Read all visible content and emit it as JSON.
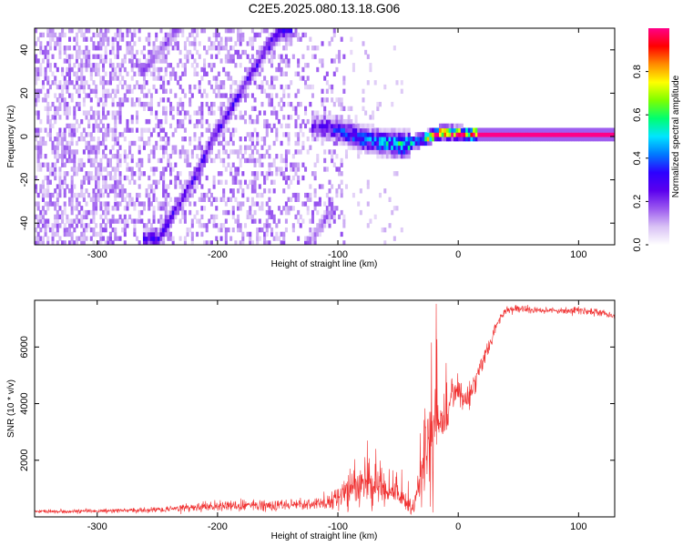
{
  "figure_title": "C2E5.2025.080.13.18.G06",
  "chart_data": [
    {
      "type": "heatmap",
      "title": "",
      "xlabel": "Height of straight line (km)",
      "ylabel": "Frequency (Hz)",
      "xlim": [
        -352,
        130
      ],
      "ylim": [
        -50,
        50
      ],
      "xticks": [
        -300,
        -200,
        -100,
        0,
        100
      ],
      "yticks": [
        -40,
        -20,
        0,
        20,
        40
      ],
      "xtick_labels": [
        "-300",
        "-200",
        "-100",
        "0",
        "100"
      ],
      "ytick_labels": [
        "-40",
        "-20",
        "0",
        "20",
        "40"
      ],
      "colorbar": {
        "label": "Normalized spectral amplitude",
        "range": [
          0,
          1
        ],
        "ticks": [
          0.0,
          0.2,
          0.4,
          0.6,
          0.8
        ],
        "tick_labels": [
          "0.0",
          "0.2",
          "0.4",
          "0.6",
          "0.8"
        ],
        "colors": [
          "#ffffff",
          "#d9c2f5",
          "#9b59ef",
          "#5b00ee",
          "#2d00ff",
          "#0078ff",
          "#00e5ff",
          "#00ff70",
          "#7dff00",
          "#ffff00",
          "#ff8c00",
          "#ff0000",
          "#ff0088"
        ]
      },
      "features": [
        {
          "name": "diagonal line",
          "x": [
            -250,
            -235,
            -220,
            -205,
            -190,
            -175,
            -160,
            -148
          ],
          "y": [
            -48,
            -34,
            -20,
            -2,
            12,
            26,
            40,
            48
          ],
          "amplitude": 0.25
        },
        {
          "name": "secondary diagonal",
          "x": [
            -262,
            -250,
            -238,
            -228
          ],
          "y": [
            30,
            38,
            46,
            52
          ],
          "amplitude": 0.18
        },
        {
          "name": "lower diagonal",
          "x": [
            -125,
            -115,
            -108
          ],
          "y": [
            -50,
            -42,
            -36
          ],
          "amplitude": 0.15
        },
        {
          "name": "tracking line",
          "x": [
            -120,
            -100,
            -80,
            -60,
            -45,
            -30,
            -15,
            0,
            15,
            130
          ],
          "y": [
            4,
            2,
            -2,
            -4,
            -5,
            -2,
            1,
            0.5,
            0,
            0
          ],
          "amplitude": [
            0.22,
            0.3,
            0.35,
            0.42,
            0.5,
            0.62,
            0.8,
            0.92,
            1.0,
            1.0
          ]
        }
      ]
    },
    {
      "type": "line",
      "title": "",
      "xlabel": "Height of straight line (km)",
      "ylabel": "SNR (10 * v/v)",
      "xlim": [
        -352,
        130
      ],
      "ylim": [
        0,
        7650
      ],
      "xticks": [
        -300,
        -200,
        -100,
        0,
        100
      ],
      "yticks": [
        2000,
        4000,
        6000
      ],
      "xtick_labels": [
        "-300",
        "-200",
        "-100",
        "0",
        "100"
      ],
      "ytick_labels": [
        "2000",
        "4000",
        "6000"
      ],
      "series": [
        {
          "color": "#f03030",
          "x": [
            -352,
            -300,
            -250,
            -200,
            -150,
            -110,
            -95,
            -80,
            -65,
            -55,
            -45,
            -38,
            -32,
            -28,
            -24,
            -20,
            -15,
            -10,
            -5,
            0,
            5,
            10,
            15,
            20,
            25,
            30,
            35,
            40,
            50,
            60,
            70,
            80,
            90,
            100,
            110,
            120,
            130
          ],
          "y": [
            200,
            200,
            260,
            380,
            420,
            450,
            800,
            1200,
            1100,
            850,
            550,
            350,
            1000,
            2000,
            2600,
            3000,
            3600,
            3400,
            4200,
            4600,
            4100,
            4400,
            5000,
            5500,
            6000,
            6600,
            7000,
            7300,
            7350,
            7300,
            7320,
            7300,
            7280,
            7300,
            7250,
            7200,
            7100
          ],
          "noise": [
            80,
            90,
            120,
            220,
            260,
            240,
            600,
            900,
            900,
            700,
            450,
            300,
            900,
            1500,
            1600,
            1500,
            1200,
            1000,
            800,
            700,
            600,
            500,
            450,
            400,
            350,
            300,
            250,
            200,
            180,
            170,
            160,
            160,
            160,
            160,
            160,
            160,
            160
          ]
        }
      ]
    }
  ]
}
